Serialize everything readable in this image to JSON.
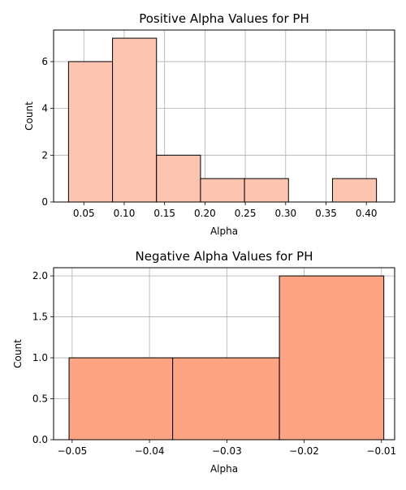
{
  "chart_data": [
    {
      "type": "bar",
      "title": "Positive Alpha Values for PH",
      "xlabel": "Alpha",
      "ylabel": "Count",
      "xlim": [
        0.0125,
        0.435
      ],
      "ylim": [
        0,
        7.35
      ],
      "bins": [
        {
          "start": 0.031,
          "end": 0.0855,
          "count": 6
        },
        {
          "start": 0.0855,
          "end": 0.14,
          "count": 7
        },
        {
          "start": 0.14,
          "end": 0.1945,
          "count": 2
        },
        {
          "start": 0.1945,
          "end": 0.249,
          "count": 1
        },
        {
          "start": 0.249,
          "end": 0.3035,
          "count": 1
        },
        {
          "start": 0.3035,
          "end": 0.358,
          "count": 0
        },
        {
          "start": 0.358,
          "end": 0.4125,
          "count": 1
        }
      ],
      "xticks": [
        0.05,
        0.1,
        0.15,
        0.2,
        0.25,
        0.3,
        0.35,
        0.4
      ],
      "xtick_labels": [
        "0.05",
        "0.10",
        "0.15",
        "0.20",
        "0.25",
        "0.30",
        "0.35",
        "0.40"
      ],
      "yticks": [
        0,
        2,
        4,
        6
      ],
      "ytick_labels": [
        "0",
        "2",
        "4",
        "6"
      ],
      "grid": true,
      "bar_color": "#fcc5b0",
      "edge_color": "#000000"
    },
    {
      "type": "bar",
      "title": "Negative Alpha Values for PH",
      "xlabel": "Alpha",
      "ylabel": "Count",
      "xlim": [
        -0.0524,
        -0.0083
      ],
      "ylim": [
        0,
        2.1
      ],
      "bins": [
        {
          "start": -0.0504,
          "end": -0.037,
          "count": 1
        },
        {
          "start": -0.037,
          "end": -0.0232,
          "count": 1
        },
        {
          "start": -0.0232,
          "end": -0.0097,
          "count": 2
        }
      ],
      "xticks": [
        -0.05,
        -0.04,
        -0.03,
        -0.02,
        -0.01
      ],
      "xtick_labels": [
        "−0.05",
        "−0.04",
        "−0.03",
        "−0.02",
        "−0.01"
      ],
      "yticks": [
        0.0,
        0.5,
        1.0,
        1.5,
        2.0
      ],
      "ytick_labels": [
        "0.0",
        "0.5",
        "1.0",
        "1.5",
        "2.0"
      ],
      "grid": true,
      "bar_color": "#fca483",
      "edge_color": "#000000"
    }
  ]
}
